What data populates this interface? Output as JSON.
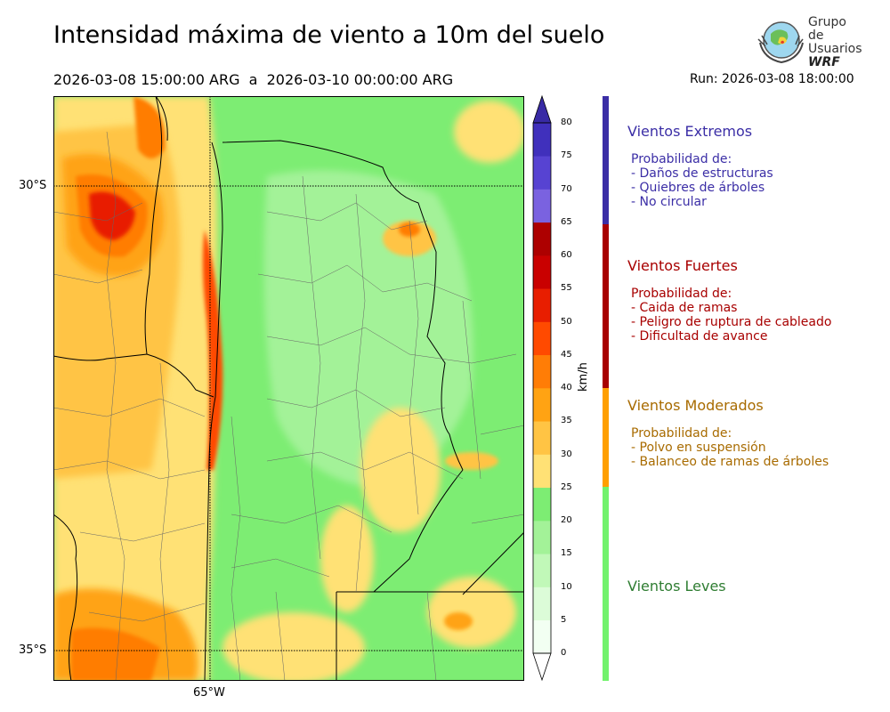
{
  "title": "Intensidad máxima de viento a 10m del suelo",
  "period": "2026-03-08 15:00:00 ARG  a  2026-03-10 00:00:00 ARG",
  "run": "Run: 2026-03-08 18:00:00",
  "logo": {
    "line1": "Grupo de",
    "line2": "Usuarios",
    "line3": "WRF",
    "icon": "globe-emblem-icon"
  },
  "map": {
    "lat_labels": [
      "30°S",
      "35°S"
    ],
    "lon_labels": [
      "65°W"
    ]
  },
  "colorbar": {
    "unit": "km/h",
    "ticks": [
      "0",
      "5",
      "10",
      "15",
      "20",
      "25",
      "30",
      "35",
      "40",
      "45",
      "50",
      "55",
      "60",
      "65",
      "70",
      "75",
      "80"
    ],
    "colors": [
      "#f2fff2",
      "#dcfcd8",
      "#c1f8b8",
      "#a3f298",
      "#7ded73",
      "#ffe175",
      "#ffc444",
      "#ffa313",
      "#ff7d06",
      "#ff4a00",
      "#e81e00",
      "#c90000",
      "#ad0000",
      "#7a62e0",
      "#5743d2",
      "#4030bc"
    ],
    "over_color": "#382aa5",
    "under_color": "#ffffff"
  },
  "categories": [
    {
      "name": "Vientos Extremos",
      "color": "#3b2ea6",
      "lines": [
        "Probabilidad de:",
        "- Daños de estructuras",
        "- Quiebres de árboles",
        "- No circular"
      ]
    },
    {
      "name": "Vientos Fuertes",
      "color": "#a80000",
      "lines": [
        "Probabilidad de:",
        "- Caida de ramas",
        "- Peligro de ruptura de cableado",
        "- Dificultad de avance"
      ]
    },
    {
      "name": "Vientos Moderados",
      "color": "#a86b00",
      "lines": [
        "Probabilidad de:",
        "- Polvo en suspensión",
        "- Balanceo de ramas de árboles"
      ]
    },
    {
      "name": "Vientos Leves",
      "color": "#2f7d32",
      "lines": []
    }
  ],
  "category_bar_colors": [
    "#3b2ea6",
    "#a80000",
    "#ff9f00",
    "#72f26d"
  ]
}
